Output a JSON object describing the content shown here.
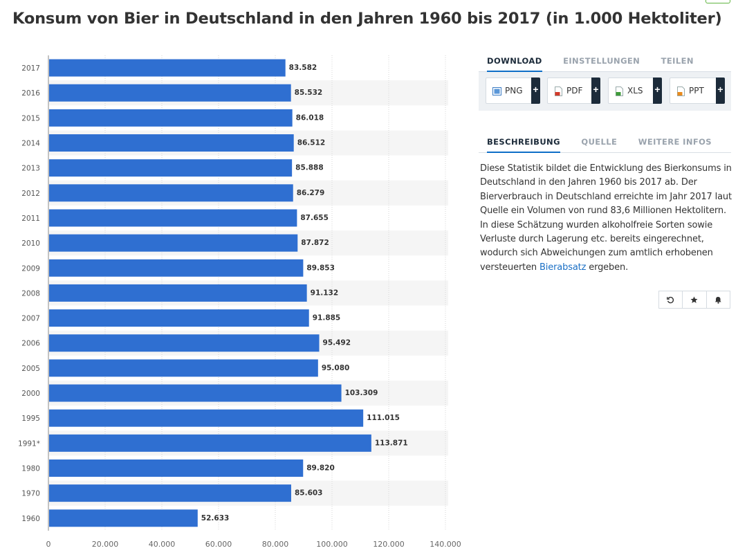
{
  "title": "Konsum von Bier in Deutschland in den Jahren 1960 bis 2017 (in 1.000 Hektoliter)",
  "chart_data": {
    "type": "bar",
    "orientation": "horizontal",
    "categories": [
      "2017",
      "2016",
      "2015",
      "2014",
      "2013",
      "2012",
      "2011",
      "2010",
      "2009",
      "2008",
      "2007",
      "2006",
      "2005",
      "2000",
      "1995",
      "1991*",
      "1980",
      "1970",
      "1960"
    ],
    "values": [
      83582,
      85532,
      86018,
      86512,
      85888,
      86279,
      87655,
      87872,
      89853,
      91132,
      91885,
      95492,
      95080,
      103309,
      111015,
      113871,
      89820,
      85603,
      52633
    ],
    "value_labels": [
      "83.582",
      "85.532",
      "86.018",
      "86.512",
      "85.888",
      "86.279",
      "87.655",
      "87.872",
      "89.853",
      "91.132",
      "91.885",
      "95.492",
      "95.080",
      "103.309",
      "111.015",
      "113.871",
      "89.820",
      "85.603",
      "52.633"
    ],
    "xlim": [
      0,
      140000
    ],
    "xticks": [
      0,
      20000,
      40000,
      60000,
      80000,
      100000,
      120000,
      140000
    ],
    "xtick_labels": [
      "0",
      "20.000",
      "40.000",
      "60.000",
      "80.000",
      "100.000",
      "120.000",
      "140.000"
    ],
    "bar_color": "#2f6fd1",
    "stripe_color": "#f5f5f5",
    "grid": "vertical-dotted"
  },
  "download": {
    "tabs": [
      "DOWNLOAD",
      "EINSTELLUNGEN",
      "TEILEN"
    ],
    "buttons": [
      {
        "label": "PNG",
        "icon": "png-file-icon",
        "color": "#3c7cc4"
      },
      {
        "label": "PDF",
        "icon": "pdf-file-icon",
        "color": "#d23a2a"
      },
      {
        "label": "XLS",
        "icon": "xls-file-icon",
        "color": "#3f9b3a"
      },
      {
        "label": "PPT",
        "icon": "ppt-file-icon",
        "color": "#e88a1c"
      }
    ],
    "plus": "+"
  },
  "info": {
    "tabs": [
      "BESCHREIBUNG",
      "QUELLE",
      "WEITERE INFOS"
    ],
    "description_before_link": "Diese Statistik bildet die Entwicklung des Bierkonsums in Deutschland in den Jahren 1960 bis 2017 ab. Der Bierverbrauch in Deutschland erreichte im Jahr 2017 laut Quelle ein Volumen von rund 83,6 Millionen Hektolitern. In diese Schätzung wurden alkoholfreie Sorten sowie Verluste durch Lagerung etc. bereits eingerechnet, wodurch sich Abweichungen zum amtlich erhobenen versteuerten ",
    "link_text": "Bierabsatz",
    "description_after_link": " ergeben."
  },
  "actions": [
    "history-icon",
    "star-icon",
    "bell-icon"
  ],
  "colors": {
    "accent": "#0e6ec7",
    "dark": "#1c2b3a",
    "link": "#1a6fc5"
  }
}
